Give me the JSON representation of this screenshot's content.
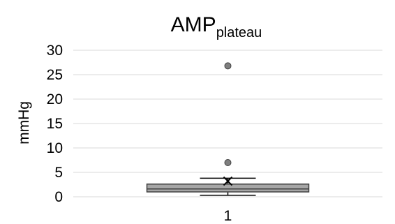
{
  "chart_data": {
    "type": "box",
    "title": {
      "main": "AMP",
      "subscript": "plateau"
    },
    "ylabel": "mmHg",
    "xlabel": "",
    "ylim": [
      0,
      30
    ],
    "yticks": [
      0,
      5,
      10,
      15,
      20,
      25,
      30
    ],
    "categories": [
      "1"
    ],
    "grid": true,
    "legend": "none",
    "boxes": [
      {
        "category": "1",
        "whisker_low": 0.3,
        "q1": 1.0,
        "median": 1.6,
        "q3": 2.6,
        "whisker_high": 3.8,
        "mean": 3.2,
        "outliers": [
          7.0,
          26.8
        ]
      }
    ],
    "colors": {
      "box_fill": "#a6a6a6",
      "box_stroke": "#404040",
      "grid": "#d9d9d9",
      "outlier_fill": "#7f7f7f"
    }
  }
}
